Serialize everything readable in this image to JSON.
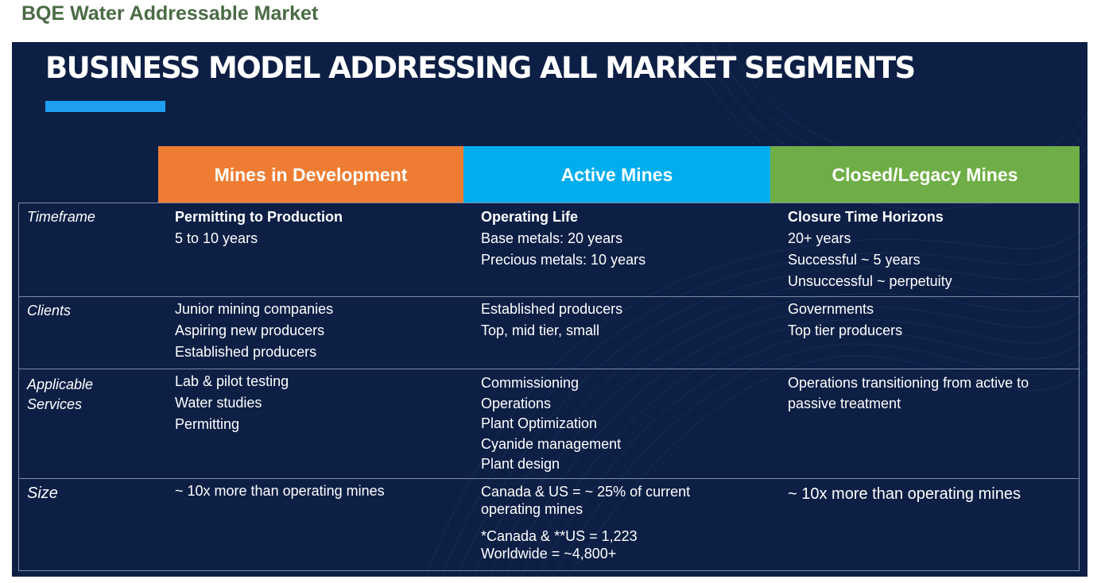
{
  "page_heading": "BQE Water Addressable Market",
  "slide": {
    "title": "BUSINESS MODEL ADDRESSING ALL MARKET SEGMENTS",
    "accent_color": "#1e9ff0",
    "background_color": "#0d1f45",
    "columns": [
      {
        "label": "Mines in Development",
        "color": "#ee7d33"
      },
      {
        "label": "Active Mines",
        "color": "#00aeee"
      },
      {
        "label": "Closed/Legacy Mines",
        "color": "#6fae47"
      }
    ],
    "rows": {
      "timeframe": {
        "label": "Timeframe",
        "dev": {
          "heading": "Permitting to Production",
          "lines": [
            "5 to 10 years"
          ]
        },
        "active": {
          "heading": "Operating Life",
          "lines": [
            "Base metals: 20 years",
            "Precious metals: 10 years"
          ]
        },
        "closed": {
          "heading": "Closure Time Horizons",
          "lines": [
            "20+ years",
            "Successful ~ 5 years",
            "Unsuccessful ~ perpetuity"
          ]
        }
      },
      "clients": {
        "label": "Clients",
        "dev": [
          "Junior mining companies",
          "Aspiring new producers",
          "Established producers"
        ],
        "active": [
          "Established producers",
          "Top, mid tier, small"
        ],
        "closed": [
          "Governments",
          "Top tier producers"
        ]
      },
      "services": {
        "label_lines": [
          "Applicable",
          "Services"
        ],
        "dev": [
          "Lab & pilot testing",
          "Water studies",
          "Permitting"
        ],
        "active": [
          "Commissioning",
          "Operations",
          "Plant Optimization",
          "Cyanide management",
          "Plant design"
        ],
        "closed": [
          "Operations transitioning from active to",
          "passive treatment"
        ]
      },
      "size": {
        "label": "Size",
        "dev": "~ 10x more than operating mines",
        "active": [
          "Canada & US = ~ 25% of current",
          "operating mines",
          "*Canada & **US = 1,223",
          "Worldwide = ~4,800+"
        ],
        "closed": "~ 10x more than operating mines"
      }
    }
  }
}
